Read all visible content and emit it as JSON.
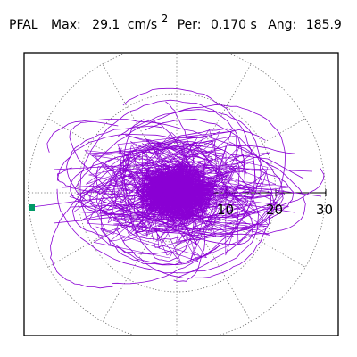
{
  "header": {
    "station": "PFAL",
    "max_label": "Max:",
    "max_value": "29.1",
    "max_unit": "cm/s",
    "max_unit_exponent": "2",
    "per_label": "Per:",
    "per_value": "0.170 s",
    "ang_label": "Ang:",
    "ang_value": "185.9"
  },
  "polar_plot": {
    "radial_ticks": [
      "10",
      "20",
      "30"
    ],
    "grid": true,
    "grid_spokes": 12,
    "trace_color": "#8a00d4",
    "marker_color": "#009966"
  }
}
